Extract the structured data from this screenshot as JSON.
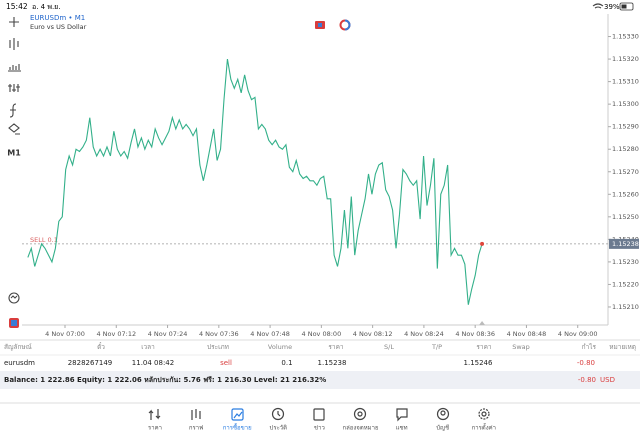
{
  "status_bar": {
    "time": "15:42",
    "date": "อ. 4 พ.ย.",
    "battery": "39%"
  },
  "toolbar": {
    "timeframe": "M1"
  },
  "chart_data": {
    "type": "line",
    "symbol": "EURUSDm • M1",
    "description": "Euro vs US Dollar",
    "color": "#33b08a",
    "values": [
      1.15232,
      1.15236,
      1.15228,
      1.15233,
      1.15238,
      1.15236,
      1.15233,
      1.1523,
      1.15236,
      1.15248,
      1.1525,
      1.15271,
      1.15277,
      1.15273,
      1.1528,
      1.15279,
      1.15281,
      1.15284,
      1.15294,
      1.15281,
      1.15277,
      1.1528,
      1.15277,
      1.15281,
      1.15277,
      1.15288,
      1.1528,
      1.15277,
      1.15279,
      1.15276,
      1.15283,
      1.15289,
      1.15281,
      1.15285,
      1.1528,
      1.15284,
      1.15281,
      1.15289,
      1.15285,
      1.15282,
      1.15285,
      1.15288,
      1.15294,
      1.15289,
      1.15293,
      1.15289,
      1.15291,
      1.15289,
      1.15286,
      1.15289,
      1.15273,
      1.15266,
      1.15273,
      1.15281,
      1.15289,
      1.15275,
      1.1528,
      1.15302,
      1.1532,
      1.15311,
      1.15307,
      1.15311,
      1.15305,
      1.15313,
      1.15306,
      1.15302,
      1.15303,
      1.15289,
      1.15291,
      1.15289,
      1.15284,
      1.15282,
      1.15284,
      1.15281,
      1.1528,
      1.15282,
      1.15272,
      1.1527,
      1.15275,
      1.15269,
      1.15267,
      1.15268,
      1.15266,
      1.15266,
      1.15264,
      1.15267,
      1.15268,
      1.15258,
      1.15258,
      1.15233,
      1.15228,
      1.15236,
      1.15253,
      1.15236,
      1.15259,
      1.15233,
      1.15244,
      1.15251,
      1.15258,
      1.15269,
      1.1526,
      1.15269,
      1.15273,
      1.15274,
      1.15262,
      1.15259,
      1.15253,
      1.15236,
      1.15251,
      1.15271,
      1.15269,
      1.15266,
      1.15264,
      1.15266,
      1.15249,
      1.15277,
      1.15255,
      1.15264,
      1.15276,
      1.15227,
      1.1526,
      1.15264,
      1.15273,
      1.15233,
      1.15236,
      1.15233,
      1.15233,
      1.15229,
      1.15211,
      1.15218,
      1.15224,
      1.15233,
      1.15238
    ],
    "xlim": [
      -1.7,
      168.6
    ],
    "xticks": [
      {
        "value": 10.8,
        "label": "4 Nov 07:00"
      },
      {
        "value": 25.7,
        "label": "4 Nov 07:12"
      },
      {
        "value": 40.6,
        "label": "4 Nov 07:24"
      },
      {
        "value": 55.5,
        "label": "4 Nov 07:36"
      },
      {
        "value": 70.4,
        "label": "4 Nov 07:48"
      },
      {
        "value": 85.3,
        "label": "4 Nov 08:00"
      },
      {
        "value": 100.2,
        "label": "4 Nov 08:12"
      },
      {
        "value": 115.1,
        "label": "4 Nov 08:24"
      },
      {
        "value": 130,
        "label": "4 Nov 08:36"
      },
      {
        "value": 144.9,
        "label": "4 Nov 08:48"
      },
      {
        "value": 159.8,
        "label": "4 Nov 09:00"
      }
    ],
    "ylim": [
      1.15202,
      1.1534
    ],
    "yticks": [
      {
        "value": 1.1533,
        "label": "1.15330"
      },
      {
        "value": 1.1532,
        "label": "1.15320"
      },
      {
        "value": 1.1531,
        "label": "1.15310"
      },
      {
        "value": 1.153,
        "label": "1.15300"
      },
      {
        "value": 1.1529,
        "label": "1.15290"
      },
      {
        "value": 1.1528,
        "label": "1.15280"
      },
      {
        "value": 1.1527,
        "label": "1.15270"
      },
      {
        "value": 1.1526,
        "label": "1.15260"
      },
      {
        "value": 1.1525,
        "label": "1.15250"
      },
      {
        "value": 1.1524,
        "label": "1.15240"
      },
      {
        "value": 1.1523,
        "label": "1.15230"
      },
      {
        "value": 1.1522,
        "label": "1.15220"
      },
      {
        "value": 1.1521,
        "label": "1.15210"
      }
    ],
    "order_line": {
      "value": 1.15238,
      "label": "SELL 0.1"
    },
    "current_price": {
      "value": 1.15238,
      "label": "1.15238"
    }
  },
  "table": {
    "columns": [
      "สัญลักษณ์",
      "ตั๋ว",
      "เวลา",
      "ประเภท",
      "Volume",
      "ราคา",
      "S/L",
      "T/P",
      "ราคา",
      "Swap",
      "กำไร",
      "หมายเหตุ"
    ],
    "row": {
      "symbol": "eurusdm",
      "ticket": "2828267149",
      "time": "11.04 08:42",
      "type": "sell",
      "volume": "0.1",
      "open_price": "1.15238",
      "current_price": "1.15246",
      "profit": "-0.80"
    }
  },
  "summary": {
    "text": "Balance: 1 222.86 Equity: 1 222.06 หลักประกัน: 5.76 ฟรี: 1 216.30 Level: 21 216.32%",
    "profit": "-0.80",
    "currency": "USD"
  },
  "tabs": [
    "ราคา",
    "กราฟ",
    "การซื้อขาย",
    "ประวัติ",
    "ข่าว",
    "กล่องจดหมาย",
    "แชท",
    "บัญชี",
    "การตั้งค่า"
  ]
}
